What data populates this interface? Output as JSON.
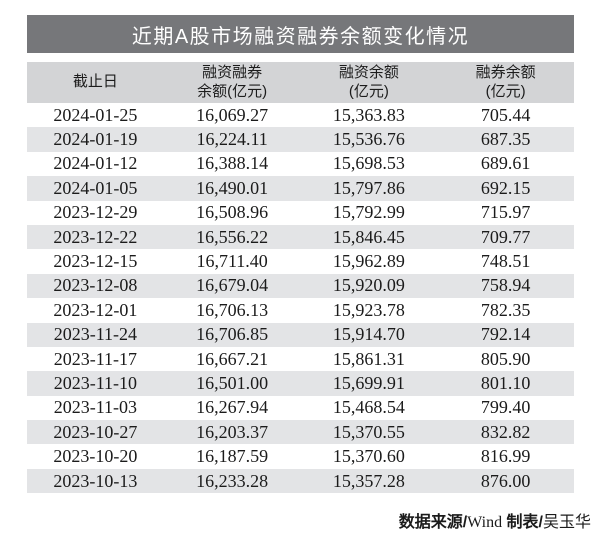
{
  "title_bar": {
    "text": "近期A股市场融资融券余额变化情况",
    "bg_color": "#76777a",
    "text_color": "#ffffff"
  },
  "table": {
    "header_bg_color": "#d3d4d6",
    "stripe_color": "#e3e4e6",
    "header": [
      {
        "line1": "截止日",
        "line2": ""
      },
      {
        "line1": "融资融券",
        "line2": "余额(亿元)"
      },
      {
        "line1": "融资余额",
        "line2": "(亿元)"
      },
      {
        "line1": "融券余额",
        "line2": "(亿元)"
      }
    ],
    "rows": [
      {
        "date": "2024-01-25",
        "margin_total": "16,069.27",
        "financing": "15,363.83",
        "securities": "705.44"
      },
      {
        "date": "2024-01-19",
        "margin_total": "16,224.11",
        "financing": "15,536.76",
        "securities": "687.35"
      },
      {
        "date": "2024-01-12",
        "margin_total": "16,388.14",
        "financing": "15,698.53",
        "securities": "689.61"
      },
      {
        "date": "2024-01-05",
        "margin_total": "16,490.01",
        "financing": "15,797.86",
        "securities": "692.15"
      },
      {
        "date": "2023-12-29",
        "margin_total": "16,508.96",
        "financing": "15,792.99",
        "securities": "715.97"
      },
      {
        "date": "2023-12-22",
        "margin_total": "16,556.22",
        "financing": "15,846.45",
        "securities": "709.77"
      },
      {
        "date": "2023-12-15",
        "margin_total": "16,711.40",
        "financing": "15,962.89",
        "securities": "748.51"
      },
      {
        "date": "2023-12-08",
        "margin_total": "16,679.04",
        "financing": "15,920.09",
        "securities": "758.94"
      },
      {
        "date": "2023-12-01",
        "margin_total": "16,706.13",
        "financing": "15,923.78",
        "securities": "782.35"
      },
      {
        "date": "2023-11-24",
        "margin_total": "16,706.85",
        "financing": "15,914.70",
        "securities": "792.14"
      },
      {
        "date": "2023-11-17",
        "margin_total": "16,667.21",
        "financing": "15,861.31",
        "securities": "805.90"
      },
      {
        "date": "2023-11-10",
        "margin_total": "16,501.00",
        "financing": "15,699.91",
        "securities": "801.10"
      },
      {
        "date": "2023-11-03",
        "margin_total": "16,267.94",
        "financing": "15,468.54",
        "securities": "799.40"
      },
      {
        "date": "2023-10-27",
        "margin_total": "16,203.37",
        "financing": "15,370.55",
        "securities": "832.82"
      },
      {
        "date": "2023-10-20",
        "margin_total": "16,187.59",
        "financing": "15,370.60",
        "securities": "816.99"
      },
      {
        "date": "2023-10-13",
        "margin_total": "16,233.28",
        "financing": "15,357.28",
        "securities": "876.00"
      }
    ]
  },
  "footer": {
    "parts": [
      {
        "text": "数据来源/"
      },
      {
        "text": "Wind"
      },
      {
        "text": " 制表/"
      },
      {
        "text": "吴玉华"
      }
    ]
  },
  "chart_data": {
    "type": "table",
    "title": "近期A股市场融资融券余额变化情况",
    "columns": [
      "截止日",
      "融资融券余额(亿元)",
      "融资余额(亿元)",
      "融券余额(亿元)"
    ],
    "rows": [
      [
        "2024-01-25",
        16069.27,
        15363.83,
        705.44
      ],
      [
        "2024-01-19",
        16224.11,
        15536.76,
        687.35
      ],
      [
        "2024-01-12",
        16388.14,
        15698.53,
        689.61
      ],
      [
        "2024-01-05",
        16490.01,
        15797.86,
        692.15
      ],
      [
        "2023-12-29",
        16508.96,
        15792.99,
        715.97
      ],
      [
        "2023-12-22",
        16556.22,
        15846.45,
        709.77
      ],
      [
        "2023-12-15",
        16711.4,
        15962.89,
        748.51
      ],
      [
        "2023-12-08",
        16679.04,
        15920.09,
        758.94
      ],
      [
        "2023-12-01",
        16706.13,
        15923.78,
        782.35
      ],
      [
        "2023-11-24",
        16706.85,
        15914.7,
        792.14
      ],
      [
        "2023-11-17",
        16667.21,
        15861.31,
        805.9
      ],
      [
        "2023-11-10",
        16501.0,
        15699.91,
        801.1
      ],
      [
        "2023-11-03",
        16267.94,
        15468.54,
        799.4
      ],
      [
        "2023-10-27",
        16203.37,
        15370.55,
        832.82
      ],
      [
        "2023-10-20",
        16187.59,
        15370.6,
        816.99
      ],
      [
        "2023-10-13",
        16233.28,
        15357.28,
        876.0
      ]
    ],
    "footer": "数据来源/Wind 制表/吴玉华",
    "layout": {
      "zebra_stripes": true,
      "stripe_rows": "even (2nd, 4th, ...)",
      "grid": "off"
    }
  }
}
